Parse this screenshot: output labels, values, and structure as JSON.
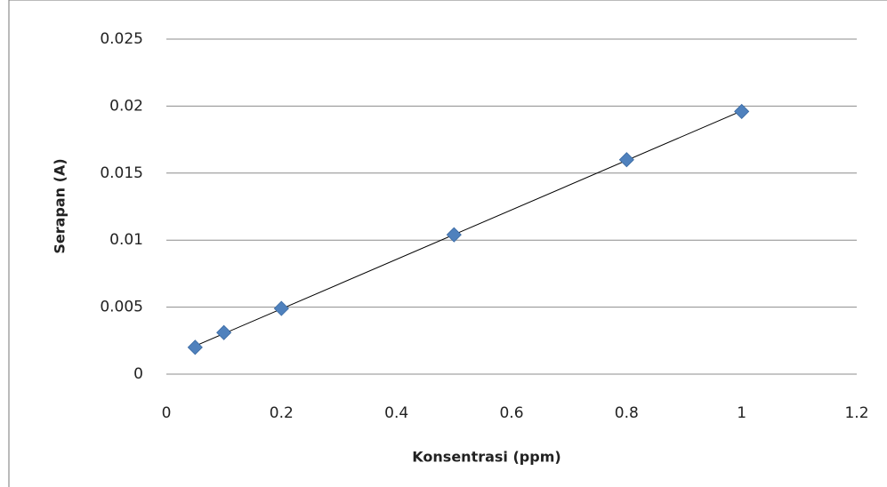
{
  "chart_data": {
    "type": "scatter",
    "x_label": "Konsentrasi (ppm)",
    "y_label": "Serapan (A)",
    "series": [
      {
        "color": "#4f81bd",
        "x": [
          0.05,
          0.1,
          0.2,
          0.5,
          0.8,
          1
        ],
        "values": [
          0.002,
          0.0031,
          0.0049,
          0.0104,
          0.016,
          0.0196
        ]
      }
    ],
    "trendline": true,
    "xlim": [
      0,
      1.2
    ],
    "xticks": [
      0,
      0.2,
      0.4,
      0.6,
      0.8,
      1,
      1.2
    ],
    "ylim": [
      0,
      0.025
    ],
    "yticks": [
      0,
      0.005,
      0.01,
      0.015,
      0.02,
      0.025
    ],
    "grid": true
  }
}
